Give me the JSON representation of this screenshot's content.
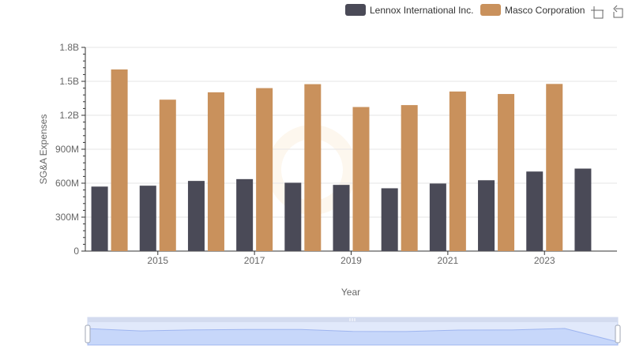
{
  "chart_data": {
    "type": "bar",
    "categories": [
      "2014",
      "2015",
      "2016",
      "2017",
      "2018",
      "2019",
      "2020",
      "2021",
      "2022",
      "2023",
      "2024"
    ],
    "x_tick_labels": [
      "2015",
      "2017",
      "2019",
      "2021",
      "2023"
    ],
    "series": [
      {
        "name": "Lennox International Inc.",
        "color": "#4a4a57",
        "values": [
          570000000,
          578000000,
          620000000,
          636000000,
          604000000,
          585000000,
          555000000,
          597000000,
          626000000,
          703000000,
          729000000
        ]
      },
      {
        "name": "Masco Corporation",
        "color": "#c9915c",
        "values": [
          1605000000,
          1338000000,
          1403000000,
          1440000000,
          1475000000,
          1273000000,
          1290000000,
          1410000000,
          1388000000,
          1477000000,
          null
        ]
      }
    ],
    "xlabel": "Year",
    "ylabel": "SG&A Expenses",
    "ylim": [
      0,
      1800000000
    ],
    "y_ticks": [
      {
        "value": 0,
        "label": "0"
      },
      {
        "value": 300000000,
        "label": "300M"
      },
      {
        "value": 600000000,
        "label": "600M"
      },
      {
        "value": 900000000,
        "label": "900M"
      },
      {
        "value": 1200000000,
        "label": "1.2B"
      },
      {
        "value": 1500000000,
        "label": "1.5B"
      },
      {
        "value": 1800000000,
        "label": "1.8B"
      }
    ],
    "grid": true,
    "legend_position": "top-right"
  },
  "toolbar": {
    "zoom_icon": "zoom-select-icon",
    "reset_icon": "zoom-reset-icon"
  },
  "data_zoom": {
    "range": [
      0,
      1
    ],
    "fill_color": "#d6e2fb",
    "line_color": "#a8bbef"
  },
  "watermark_icon": "brand-watermark-icon"
}
